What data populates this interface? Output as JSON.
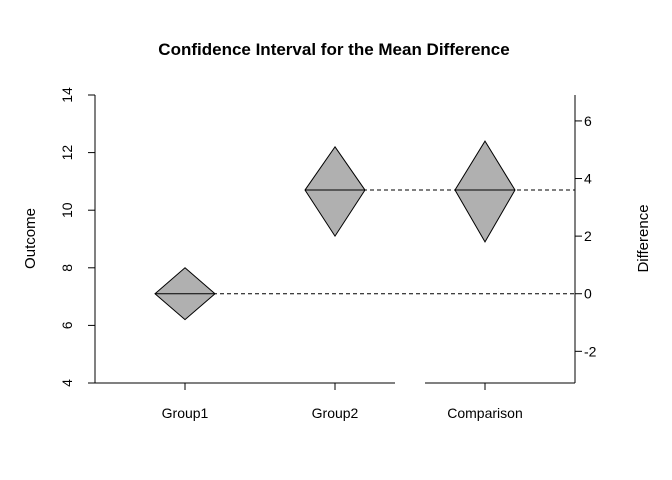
{
  "chart_data": {
    "type": "line",
    "title": "Confidence Interval for the Mean Difference",
    "ylabel": "Outcome",
    "y2label": "Difference",
    "categories": [
      "Group1",
      "Group2",
      "Comparison"
    ],
    "ylim": [
      4,
      14
    ],
    "y_ticks": [
      4,
      6,
      8,
      10,
      12,
      14
    ],
    "y2lim": [
      -3.1,
      6.9
    ],
    "y2_ticks": [
      -2,
      0,
      2,
      4,
      6
    ],
    "series": [
      {
        "axis": "left",
        "categories": [
          "Group1",
          "Group2"
        ],
        "mean": [
          7.1,
          10.7
        ],
        "lower": [
          6.2,
          9.1
        ],
        "upper": [
          8.0,
          12.2
        ]
      },
      {
        "axis": "right",
        "categories": [
          "Comparison"
        ],
        "mean": [
          3.6
        ],
        "lower": [
          1.8
        ],
        "upper": [
          5.3
        ]
      }
    ],
    "reference_lines_right_axis": [
      0,
      3.6
    ],
    "grid": false,
    "legend": "none",
    "colors": {
      "fill": "#b0b0b0",
      "stroke": "#000000",
      "text": "#000000"
    }
  }
}
